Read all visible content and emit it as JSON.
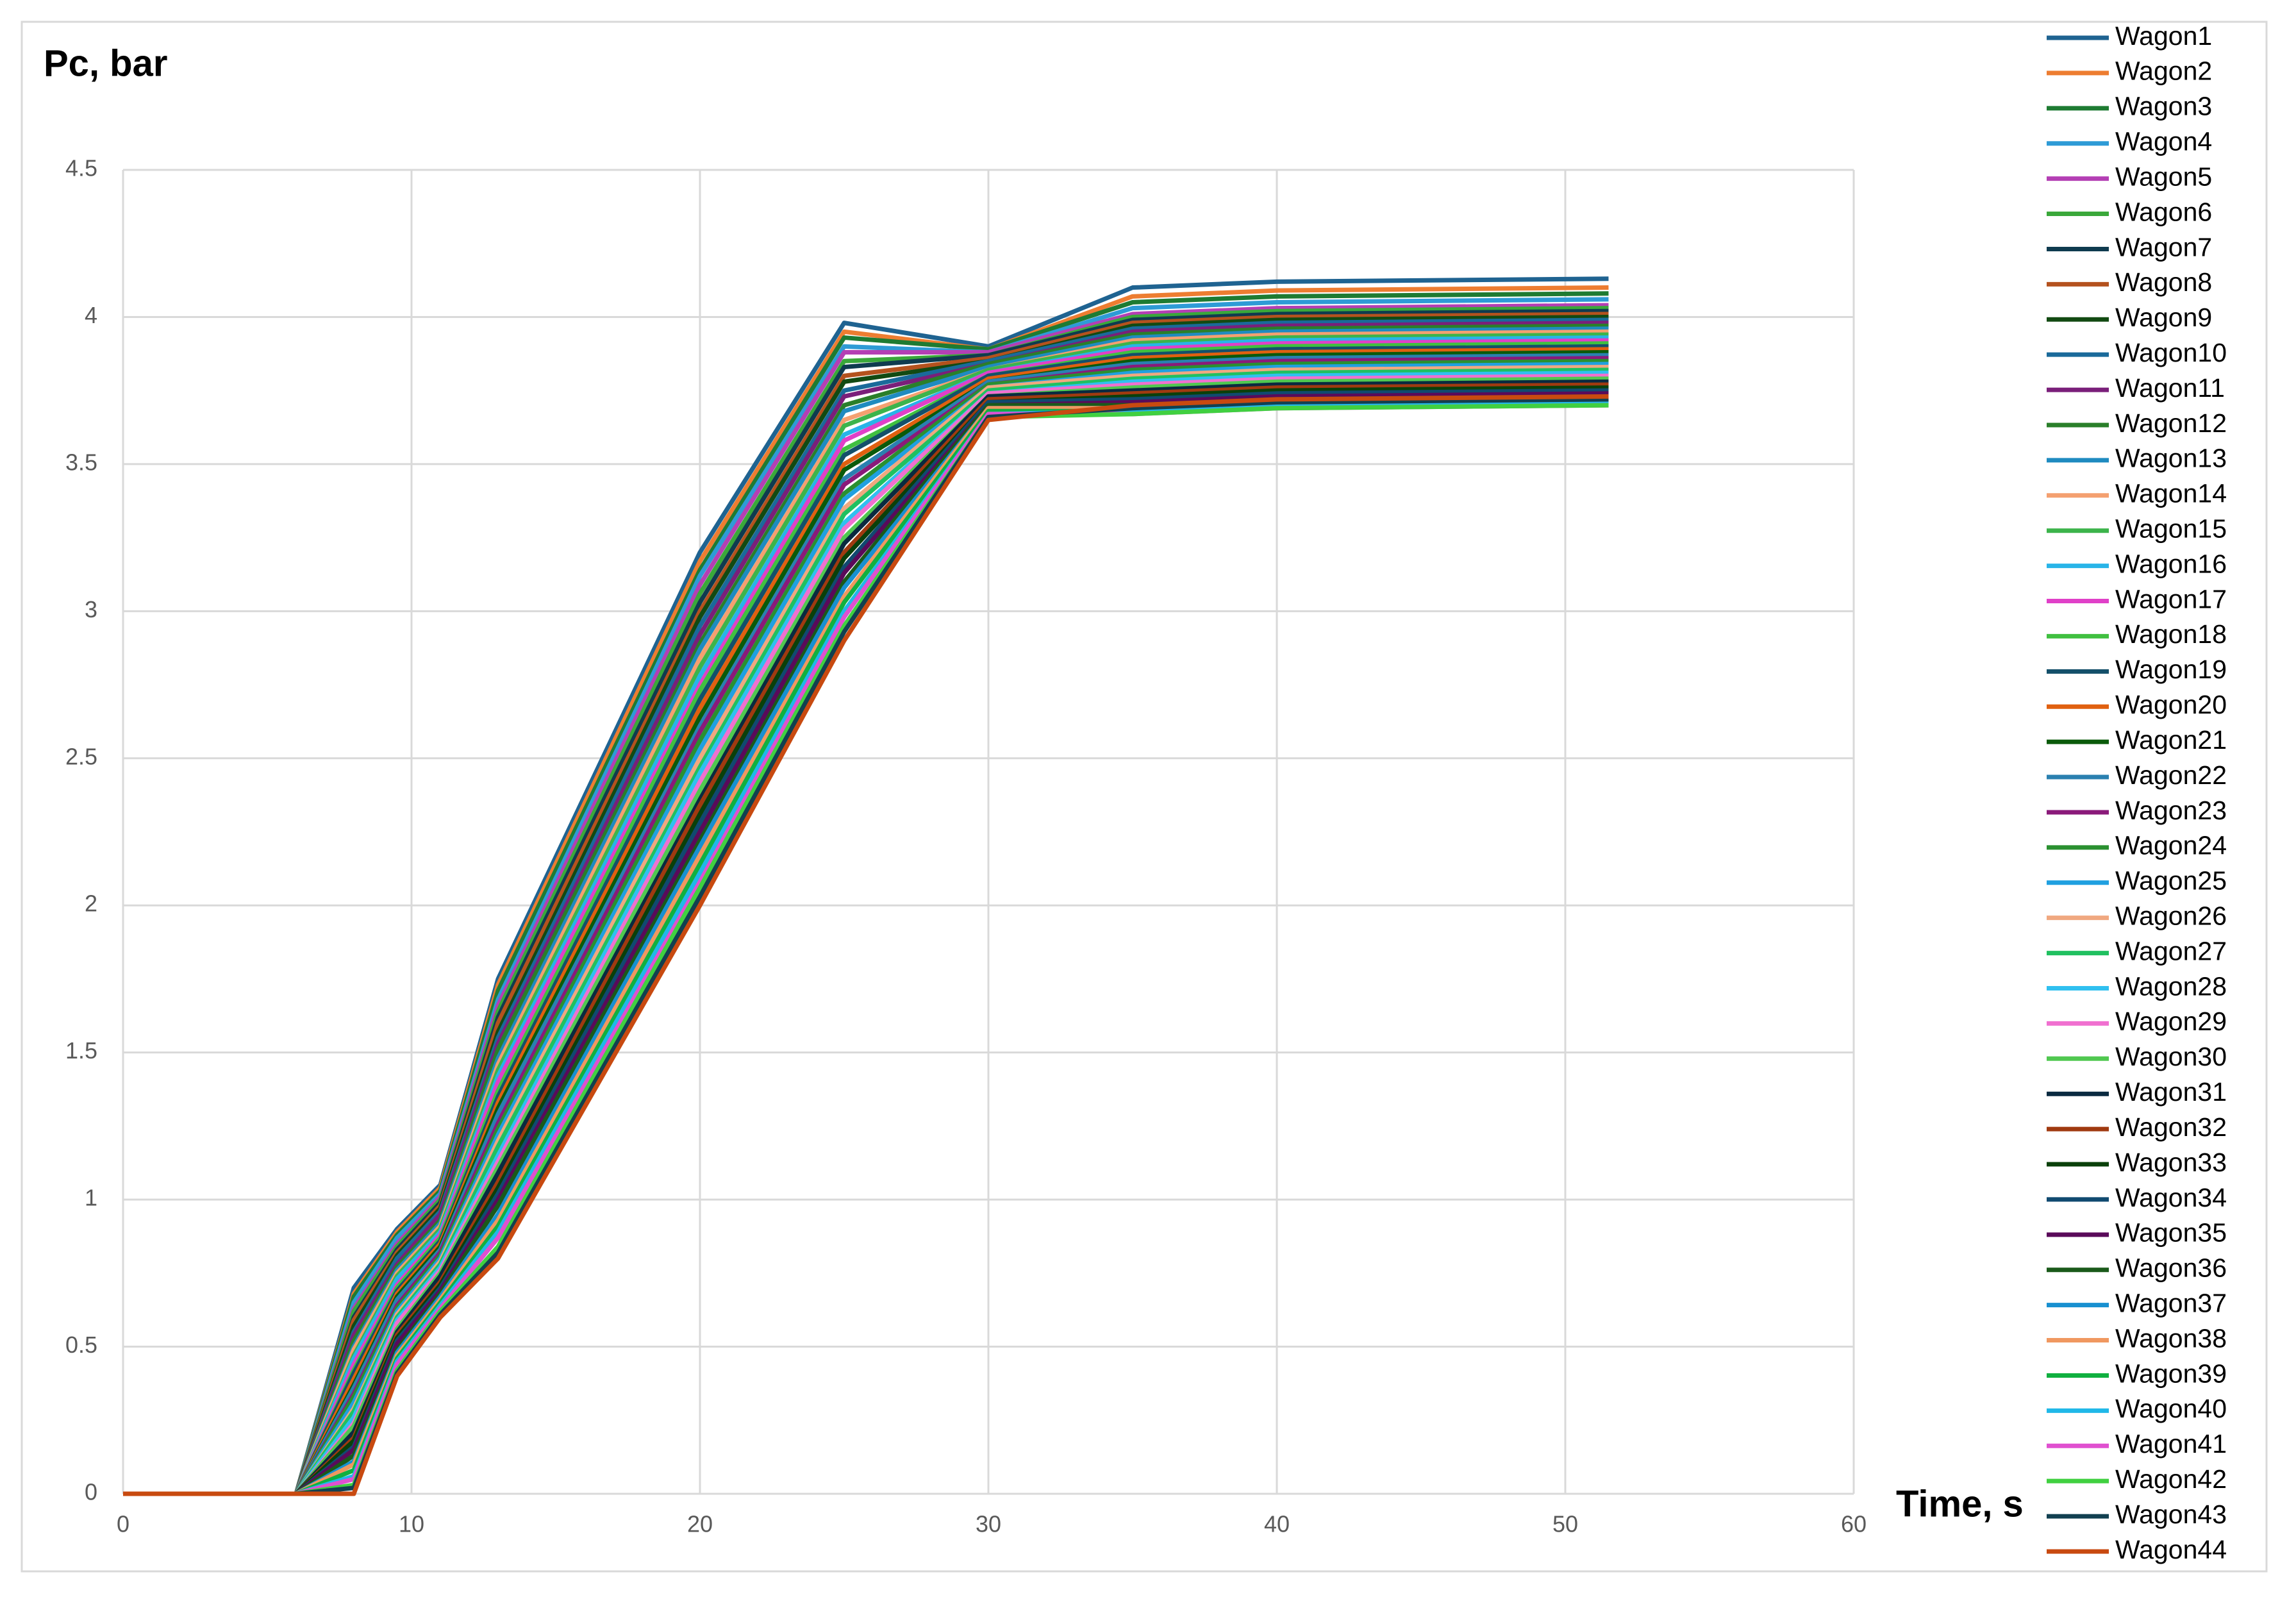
{
  "chart_data": {
    "type": "line",
    "title": "Pc, bar",
    "x_label": "Time, s",
    "x": [
      0,
      6,
      8,
      9.5,
      11,
      13,
      20,
      25,
      30,
      35,
      40,
      51.5
    ],
    "xlim": [
      0,
      60
    ],
    "xticks": [
      0,
      10,
      20,
      30,
      40,
      50,
      60
    ],
    "ylim": [
      0,
      4.5
    ],
    "yticks": [
      0,
      0.5,
      1,
      1.5,
      2,
      2.5,
      3,
      3.5,
      4,
      4.5
    ],
    "grid": true,
    "legend": "right",
    "series": [
      {
        "name": "Wagon1",
        "color": "#1f6391",
        "values": [
          0,
          0,
          0.7,
          0.9,
          1.05,
          1.75,
          3.2,
          3.98,
          3.9,
          4.1,
          4.12,
          4.13
        ]
      },
      {
        "name": "Wagon2",
        "color": "#ed7d31",
        "values": [
          0,
          0,
          0.68,
          0.89,
          1.04,
          1.73,
          3.17,
          3.95,
          3.89,
          4.07,
          4.09,
          4.1
        ]
      },
      {
        "name": "Wagon3",
        "color": "#1e7b32",
        "values": [
          0,
          0,
          0.67,
          0.88,
          1.03,
          1.71,
          3.14,
          3.93,
          3.89,
          4.05,
          4.07,
          4.08
        ]
      },
      {
        "name": "Wagon4",
        "color": "#2e9bd6",
        "values": [
          0,
          0,
          0.65,
          0.87,
          1.02,
          1.68,
          3.12,
          3.9,
          3.88,
          4.03,
          4.05,
          4.06
        ]
      },
      {
        "name": "Wagon5",
        "color": "#b43fb4",
        "values": [
          0,
          0,
          0.63,
          0.85,
          1.01,
          1.66,
          3.09,
          3.88,
          3.88,
          4.01,
          4.03,
          4.04
        ]
      },
      {
        "name": "Wagon6",
        "color": "#3aa83a",
        "values": [
          0,
          0,
          0.62,
          0.84,
          1.0,
          1.64,
          3.06,
          3.85,
          3.87,
          4.0,
          4.02,
          4.03
        ]
      },
      {
        "name": "Wagon7",
        "color": "#0f3b4f",
        "values": [
          0,
          0,
          0.6,
          0.83,
          0.99,
          1.62,
          3.03,
          3.83,
          3.87,
          3.99,
          4.01,
          4.02
        ]
      },
      {
        "name": "Wagon8",
        "color": "#b4521e",
        "values": [
          0,
          0,
          0.59,
          0.82,
          0.98,
          1.6,
          3.0,
          3.8,
          3.86,
          3.98,
          4.0,
          4.01
        ]
      },
      {
        "name": "Wagon9",
        "color": "#124a12",
        "values": [
          0,
          0,
          0.57,
          0.81,
          0.97,
          1.57,
          2.98,
          3.78,
          3.85,
          3.97,
          3.99,
          4.0
        ]
      },
      {
        "name": "Wagon10",
        "color": "#1a6a9a",
        "values": [
          0,
          0,
          0.55,
          0.8,
          0.96,
          1.55,
          2.95,
          3.75,
          3.85,
          3.96,
          3.98,
          3.99
        ]
      },
      {
        "name": "Wagon11",
        "color": "#7a1f7a",
        "values": [
          0,
          0,
          0.54,
          0.78,
          0.95,
          1.53,
          2.92,
          3.73,
          3.84,
          3.95,
          3.97,
          3.98
        ]
      },
      {
        "name": "Wagon12",
        "color": "#2a7f2a",
        "values": [
          0,
          0,
          0.52,
          0.77,
          0.93,
          1.51,
          2.89,
          3.7,
          3.84,
          3.94,
          3.96,
          3.97
        ]
      },
      {
        "name": "Wagon13",
        "color": "#1f8bc0",
        "values": [
          0,
          0,
          0.5,
          0.76,
          0.92,
          1.48,
          2.87,
          3.68,
          3.83,
          3.93,
          3.95,
          3.96
        ]
      },
      {
        "name": "Wagon14",
        "color": "#f4a070",
        "values": [
          0,
          0,
          0.49,
          0.75,
          0.91,
          1.46,
          2.84,
          3.65,
          3.82,
          3.92,
          3.94,
          3.95
        ]
      },
      {
        "name": "Wagon15",
        "color": "#3cb44b",
        "values": [
          0,
          0,
          0.47,
          0.74,
          0.9,
          1.44,
          2.81,
          3.63,
          3.82,
          3.91,
          3.93,
          3.94
        ]
      },
      {
        "name": "Wagon16",
        "color": "#28b4e8",
        "values": [
          0,
          0,
          0.46,
          0.73,
          0.89,
          1.42,
          2.78,
          3.6,
          3.81,
          3.9,
          3.92,
          3.93
        ]
      },
      {
        "name": "Wagon17",
        "color": "#e040c8",
        "values": [
          0,
          0,
          0.44,
          0.71,
          0.88,
          1.4,
          2.75,
          3.58,
          3.81,
          3.89,
          3.91,
          3.92
        ]
      },
      {
        "name": "Wagon18",
        "color": "#40c040",
        "values": [
          0,
          0,
          0.42,
          0.7,
          0.87,
          1.37,
          2.73,
          3.55,
          3.8,
          3.88,
          3.9,
          3.91
        ]
      },
      {
        "name": "Wagon19",
        "color": "#14506a",
        "values": [
          0,
          0,
          0.41,
          0.69,
          0.86,
          1.35,
          2.7,
          3.53,
          3.8,
          3.87,
          3.89,
          3.9
        ]
      },
      {
        "name": "Wagon20",
        "color": "#e06010",
        "values": [
          0,
          0,
          0.39,
          0.68,
          0.85,
          1.33,
          2.67,
          3.5,
          3.79,
          3.86,
          3.88,
          3.89
        ]
      },
      {
        "name": "Wagon21",
        "color": "#0a5a0a",
        "values": [
          0,
          0,
          0.37,
          0.67,
          0.84,
          1.31,
          2.64,
          3.48,
          3.78,
          3.85,
          3.87,
          3.88
        ]
      },
      {
        "name": "Wagon22",
        "color": "#2a80b0",
        "values": [
          0,
          0,
          0.36,
          0.66,
          0.83,
          1.29,
          2.61,
          3.45,
          3.78,
          3.84,
          3.86,
          3.87
        ]
      },
      {
        "name": "Wagon23",
        "color": "#8a1a7a",
        "values": [
          0,
          0,
          0.34,
          0.64,
          0.82,
          1.26,
          2.59,
          3.43,
          3.77,
          3.83,
          3.85,
          3.86
        ]
      },
      {
        "name": "Wagon24",
        "color": "#2a9030",
        "values": [
          0,
          0,
          0.33,
          0.63,
          0.81,
          1.24,
          2.56,
          3.4,
          3.77,
          3.82,
          3.84,
          3.85
        ]
      },
      {
        "name": "Wagon25",
        "color": "#20a0e0",
        "values": [
          0,
          0,
          0.31,
          0.62,
          0.8,
          1.22,
          2.53,
          3.38,
          3.76,
          3.81,
          3.83,
          3.84
        ]
      },
      {
        "name": "Wagon26",
        "color": "#f0a880",
        "values": [
          0,
          0,
          0.29,
          0.61,
          0.79,
          1.2,
          2.5,
          3.35,
          3.76,
          3.8,
          3.82,
          3.83
        ]
      },
      {
        "name": "Wagon27",
        "color": "#20c060",
        "values": [
          0,
          0,
          0.28,
          0.6,
          0.78,
          1.18,
          2.47,
          3.33,
          3.75,
          3.79,
          3.81,
          3.82
        ]
      },
      {
        "name": "Wagon28",
        "color": "#30c0f0",
        "values": [
          0,
          0,
          0.26,
          0.59,
          0.77,
          1.15,
          2.45,
          3.3,
          3.74,
          3.78,
          3.8,
          3.81
        ]
      },
      {
        "name": "Wagon29",
        "color": "#f070d0",
        "values": [
          0,
          0,
          0.24,
          0.58,
          0.76,
          1.13,
          2.42,
          3.28,
          3.74,
          3.77,
          3.79,
          3.8
        ]
      },
      {
        "name": "Wagon30",
        "color": "#50c850",
        "values": [
          0,
          0,
          0.23,
          0.56,
          0.75,
          1.11,
          2.39,
          3.25,
          3.73,
          3.76,
          3.78,
          3.79
        ]
      },
      {
        "name": "Wagon31",
        "color": "#0a2a40",
        "values": [
          0,
          0,
          0.21,
          0.55,
          0.74,
          1.09,
          2.36,
          3.23,
          3.73,
          3.75,
          3.77,
          3.78
        ]
      },
      {
        "name": "Wagon32",
        "color": "#a03a10",
        "values": [
          0,
          0,
          0.19,
          0.54,
          0.72,
          1.06,
          2.34,
          3.2,
          3.72,
          3.74,
          3.76,
          3.77
        ]
      },
      {
        "name": "Wagon33",
        "color": "#0a400a",
        "values": [
          0,
          0,
          0.18,
          0.53,
          0.71,
          1.04,
          2.31,
          3.18,
          3.71,
          3.73,
          3.75,
          3.76
        ]
      },
      {
        "name": "Wagon34",
        "color": "#104a70",
        "values": [
          0,
          0,
          0.16,
          0.52,
          0.7,
          1.02,
          2.28,
          3.15,
          3.71,
          3.72,
          3.74,
          3.75
        ]
      },
      {
        "name": "Wagon35",
        "color": "#5a0a5a",
        "values": [
          0,
          0,
          0.15,
          0.51,
          0.69,
          1.0,
          2.25,
          3.13,
          3.7,
          3.71,
          3.73,
          3.74
        ]
      },
      {
        "name": "Wagon36",
        "color": "#1a5a1a",
        "values": [
          0,
          0,
          0.13,
          0.49,
          0.68,
          0.98,
          2.22,
          3.1,
          3.7,
          3.7,
          3.72,
          3.73
        ]
      },
      {
        "name": "Wagon37",
        "color": "#1890d0",
        "values": [
          0,
          0,
          0.11,
          0.48,
          0.67,
          0.95,
          2.2,
          3.08,
          3.69,
          3.69,
          3.71,
          3.72
        ]
      },
      {
        "name": "Wagon38",
        "color": "#f09860",
        "values": [
          0,
          0,
          0.1,
          0.47,
          0.66,
          0.93,
          2.17,
          3.05,
          3.69,
          3.69,
          3.71,
          3.72
        ]
      },
      {
        "name": "Wagon39",
        "color": "#10b040",
        "values": [
          0,
          0,
          0.08,
          0.46,
          0.65,
          0.91,
          2.14,
          3.03,
          3.68,
          3.68,
          3.7,
          3.71
        ]
      },
      {
        "name": "Wagon40",
        "color": "#20b8e8",
        "values": [
          0,
          0,
          0.06,
          0.45,
          0.64,
          0.89,
          2.11,
          3.0,
          3.67,
          3.68,
          3.7,
          3.71
        ]
      },
      {
        "name": "Wagon41",
        "color": "#e050d0",
        "values": [
          0,
          0,
          0.05,
          0.44,
          0.63,
          0.87,
          2.08,
          2.98,
          3.67,
          3.67,
          3.69,
          3.7
        ]
      },
      {
        "name": "Wagon42",
        "color": "#40d040",
        "values": [
          0,
          0,
          0.03,
          0.42,
          0.62,
          0.84,
          2.06,
          2.95,
          3.66,
          3.67,
          3.69,
          3.7
        ]
      },
      {
        "name": "Wagon43",
        "color": "#124050",
        "values": [
          0,
          0,
          0.02,
          0.41,
          0.61,
          0.82,
          2.03,
          2.93,
          3.66,
          3.69,
          3.71,
          3.72
        ]
      },
      {
        "name": "Wagon44",
        "color": "#c84a10",
        "values": [
          0,
          0,
          0,
          0.4,
          0.6,
          0.8,
          2.0,
          2.9,
          3.65,
          3.7,
          3.72,
          3.73
        ]
      }
    ]
  }
}
